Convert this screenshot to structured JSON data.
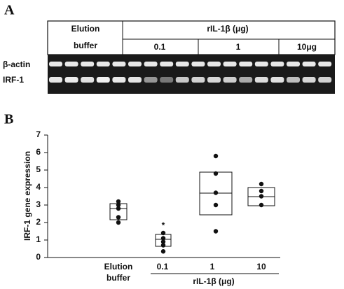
{
  "panel_a": {
    "label": "A",
    "header_1": "Elution",
    "header_2": "buffer",
    "group": "rIL-1β (μg)",
    "doses": [
      "0.1",
      "1",
      "10μg"
    ],
    "rows": [
      "β-actin",
      "IRF-1"
    ]
  },
  "chart_data": {
    "type": "box",
    "label": "B",
    "ylabel": "IRF-1 gene expression",
    "categories": [
      "Elution buffer",
      "0.1",
      "1",
      "10"
    ],
    "group_label": "rIL-1β (μg)",
    "annotation": "*",
    "ylim": [
      0,
      7
    ],
    "yticks": [
      0,
      1,
      2,
      3,
      4,
      5,
      6,
      7
    ],
    "boxes": [
      {
        "q1": 2.16,
        "median": 2.8,
        "q3": 3.08,
        "points": [
          3.2,
          3.0,
          2.8,
          2.3,
          2.0
        ]
      },
      {
        "q1": 0.64,
        "median": 1.04,
        "q3": 1.32,
        "points": [
          1.4,
          1.1,
          0.9,
          0.7,
          0.35
        ]
      },
      {
        "q1": 2.44,
        "median": 3.68,
        "q3": 4.88,
        "points": [
          5.8,
          4.8,
          3.7,
          3.0,
          1.5
        ]
      },
      {
        "q1": 2.96,
        "median": 3.48,
        "q3": 4.0,
        "points": [
          4.2,
          3.8,
          3.5,
          3.0
        ]
      }
    ]
  }
}
